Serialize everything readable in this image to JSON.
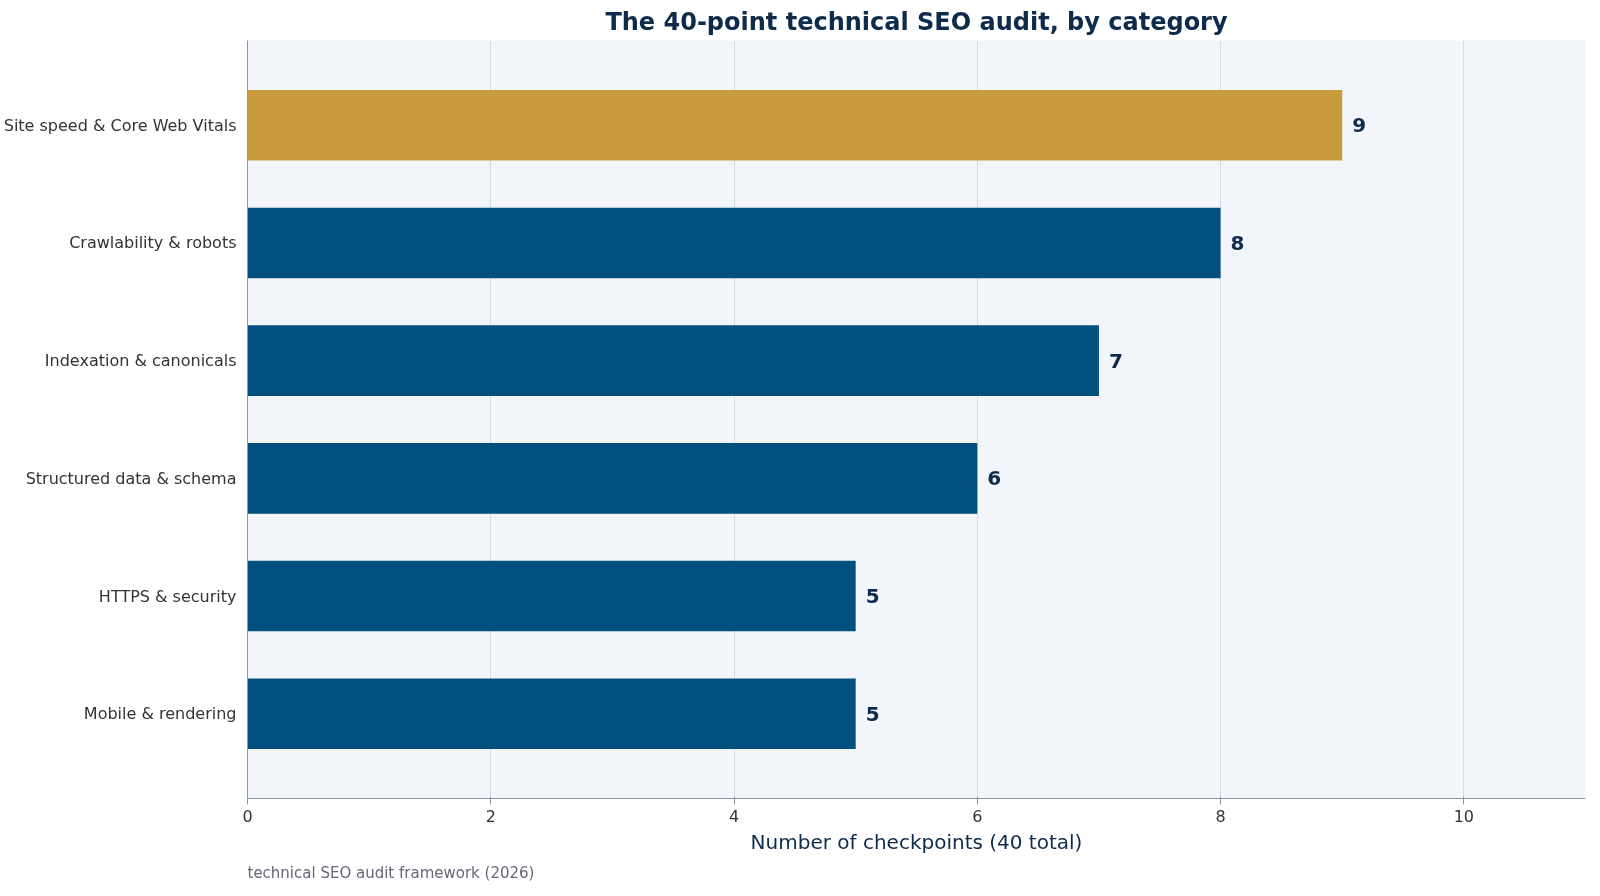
{
  "chart_data": {
    "type": "bar",
    "orientation": "horizontal",
    "title": "The 40-point technical SEO audit, by category",
    "xlabel": "Number of checkpoints (40 total)",
    "categories": [
      "Site speed & Core Web Vitals",
      "Crawlability & robots",
      "Indexation & canonicals",
      "Structured data & schema",
      "HTTPS & security",
      "Mobile & rendering"
    ],
    "values": [
      9,
      8,
      7,
      6,
      5,
      5
    ],
    "colors": [
      "#c89b3c",
      "#02507e",
      "#02507e",
      "#02507e",
      "#02507e",
      "#02507e"
    ],
    "xlim": [
      0,
      11
    ],
    "xticks": [
      0,
      2,
      4,
      6,
      8,
      10
    ],
    "grid": "x",
    "data_labels": true,
    "annotations": [
      "technical SEO audit framework (2026)"
    ]
  }
}
